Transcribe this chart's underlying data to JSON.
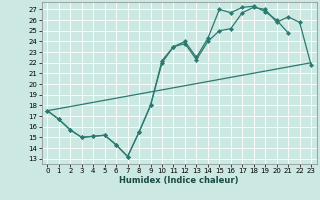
{
  "bg_color": "#cce8e3",
  "grid_color": "#b8d8d3",
  "line_color": "#2a7a70",
  "xlabel": "Humidex (Indice chaleur)",
  "xlim": [
    -0.5,
    23.5
  ],
  "ylim": [
    12.5,
    27.7
  ],
  "xticks": [
    0,
    1,
    2,
    3,
    4,
    5,
    6,
    7,
    8,
    9,
    10,
    11,
    12,
    13,
    14,
    15,
    16,
    17,
    18,
    19,
    20,
    21,
    22,
    23
  ],
  "yticks": [
    13,
    14,
    15,
    16,
    17,
    18,
    19,
    20,
    21,
    22,
    23,
    24,
    25,
    26,
    27
  ],
  "curve1_x": [
    0,
    1,
    2,
    3,
    4,
    5,
    6,
    7,
    8,
    9,
    10,
    11,
    12,
    13,
    14,
    15,
    16,
    17,
    18,
    19,
    20,
    21
  ],
  "curve1_y": [
    17.5,
    16.7,
    15.7,
    15.0,
    15.1,
    15.2,
    14.3,
    13.2,
    15.5,
    18.0,
    22.2,
    23.5,
    24.0,
    22.5,
    24.3,
    27.0,
    26.7,
    27.2,
    27.3,
    26.8,
    26.0,
    24.8
  ],
  "curve2_x": [
    0,
    1,
    2,
    3,
    4,
    5,
    6,
    7,
    8,
    9,
    10,
    11,
    12,
    13,
    14,
    15,
    16,
    17,
    18,
    19,
    20,
    21,
    22,
    23
  ],
  "curve2_y": [
    17.5,
    16.7,
    15.7,
    15.0,
    15.1,
    15.2,
    14.3,
    13.2,
    15.5,
    18.0,
    22.0,
    23.5,
    23.8,
    22.3,
    24.0,
    25.0,
    25.2,
    26.7,
    27.2,
    27.0,
    25.8,
    26.3,
    25.8,
    21.8
  ],
  "line3_x": [
    0,
    23
  ],
  "line3_y": [
    17.5,
    22.0
  ]
}
